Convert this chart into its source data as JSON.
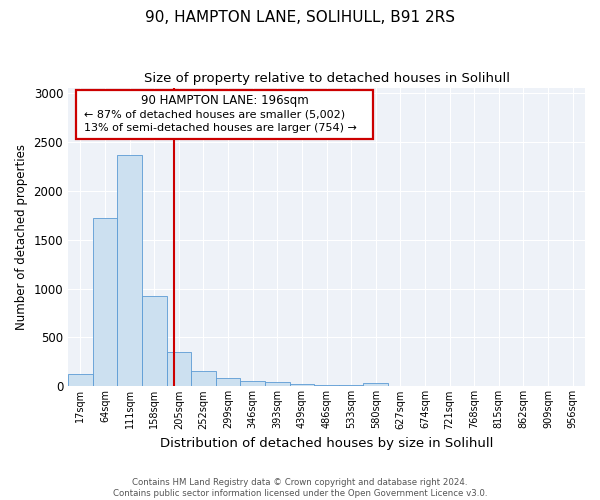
{
  "title": "90, HAMPTON LANE, SOLIHULL, B91 2RS",
  "subtitle": "Size of property relative to detached houses in Solihull",
  "xlabel": "Distribution of detached houses by size in Solihull",
  "ylabel": "Number of detached properties",
  "footer_line1": "Contains HM Land Registry data © Crown copyright and database right 2024.",
  "footer_line2": "Contains public sector information licensed under the Open Government Licence v3.0.",
  "bin_labels": [
    "17sqm",
    "64sqm",
    "111sqm",
    "158sqm",
    "205sqm",
    "252sqm",
    "299sqm",
    "346sqm",
    "393sqm",
    "439sqm",
    "486sqm",
    "533sqm",
    "580sqm",
    "627sqm",
    "674sqm",
    "721sqm",
    "768sqm",
    "815sqm",
    "862sqm",
    "909sqm",
    "956sqm"
  ],
  "bar_values": [
    125,
    1725,
    2370,
    920,
    350,
    155,
    85,
    58,
    42,
    22,
    18,
    12,
    30,
    0,
    0,
    0,
    0,
    0,
    0,
    0,
    0
  ],
  "bar_color": "#cce0f0",
  "bar_edge_color": "#5b9bd5",
  "annotation_title": "90 HAMPTON LANE: 196sqm",
  "annotation_line1": "← 87% of detached houses are smaller (5,002)",
  "annotation_line2": "13% of semi-detached houses are larger (754) →",
  "ylim": [
    0,
    3050
  ],
  "yticks": [
    0,
    500,
    1000,
    1500,
    2000,
    2500,
    3000
  ],
  "vline_color": "#cc0000",
  "annotation_box_edge": "#cc0000",
  "background_color": "#eef2f8"
}
